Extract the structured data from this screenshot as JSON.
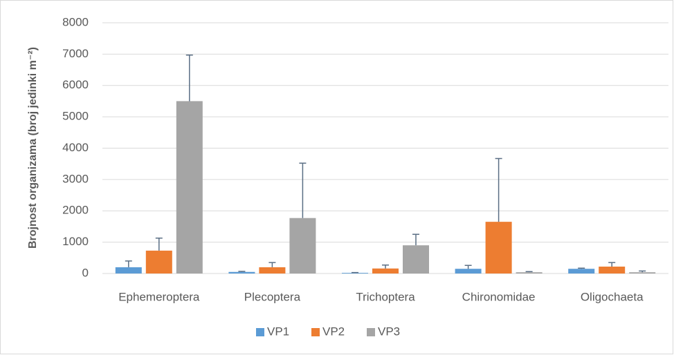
{
  "chart_data": {
    "type": "bar",
    "y_label": "Brojnost organizama (broj jedinki m⁻²)",
    "categories": [
      "Ephemeroptera",
      "Plecoptera",
      "Trichoptera",
      "Chironomidae",
      "Oligochaeta"
    ],
    "series": [
      {
        "name": "VP1",
        "color": "#5b9bd5",
        "values": [
          200,
          50,
          20,
          150,
          150
        ],
        "errors": [
          200,
          20,
          10,
          110,
          20
        ]
      },
      {
        "name": "VP2",
        "color": "#ed7d31",
        "values": [
          730,
          200,
          160,
          1650,
          220
        ],
        "errors": [
          400,
          150,
          110,
          2020,
          130
        ]
      },
      {
        "name": "VP3",
        "color": "#a5a5a5",
        "values": [
          5500,
          1770,
          900,
          40,
          40
        ],
        "errors": [
          1470,
          1750,
          350,
          20,
          40
        ]
      }
    ],
    "ylim": [
      0,
      8000
    ],
    "yticks": [
      0,
      1000,
      2000,
      3000,
      4000,
      5000,
      6000,
      7000,
      8000
    ],
    "grid": true,
    "legend": "bottom",
    "error_color": "#5a6e84"
  }
}
